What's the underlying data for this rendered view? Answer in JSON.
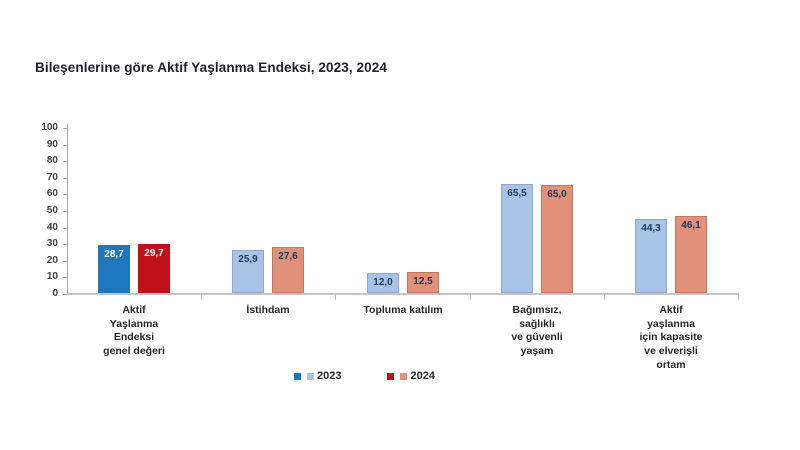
{
  "title": "Bileşenlerine göre Aktif Yaşlanma Endeksi, 2023, 2024",
  "colors": {
    "background": "#ffffff",
    "title_text": "#1f1f2e",
    "axis_text": "#404040",
    "axis_line": "#a6a6a6",
    "baseline": "#c4c4c4",
    "category_text": "#262626",
    "dark_blue_2023": "#1f78be",
    "dark_red_2024": "#c0111a",
    "light_blue_2023": "#a9c3e6",
    "salmon_2024": "#e19079",
    "value_label_on_dark": "#ffffff",
    "value_label_on_light": "#1f3864"
  },
  "chart_data": {
    "type": "bar",
    "title": "Bileşenlerine göre Aktif Yaşlanma Endeksi, 2023, 2024",
    "xlabel": "",
    "ylabel": "",
    "ylim": [
      0,
      100
    ],
    "yticks": [
      0,
      10,
      20,
      30,
      40,
      50,
      60,
      70,
      80,
      90,
      100
    ],
    "grid": false,
    "legend_position": "bottom-center",
    "categories": [
      "Aktif\nYaşlanma\nEndeksi\ngenel değeri",
      "İstihdam",
      "Topluma katılım",
      "Bağımsız,\nsağlıklı\nve güvenli\nyaşam",
      "Aktif\nyaşlanma\niçin kapasite\nve elverişli\nortam"
    ],
    "series": [
      {
        "name": "2023",
        "values": [
          28.7,
          25.9,
          12.0,
          65.5,
          44.3
        ],
        "labels": [
          "28,7",
          "25,9",
          "12,0",
          "65,5",
          "44,3"
        ],
        "bar_colors": [
          "#1f78be",
          "#a9c3e6",
          "#a9c3e6",
          "#a9c3e6",
          "#a9c3e6"
        ],
        "bar_borders": [
          "#1f78be",
          "#8ca9d4",
          "#8ca9d4",
          "#8ca9d4",
          "#8ca9d4"
        ],
        "label_colors": [
          "#ffffff",
          "#1f3864",
          "#1f3864",
          "#1f3864",
          "#1f3864"
        ]
      },
      {
        "name": "2024",
        "values": [
          29.7,
          27.6,
          12.5,
          65.0,
          46.1
        ],
        "labels": [
          "29,7",
          "27,6",
          "12,5",
          "65,0",
          "46,1"
        ],
        "bar_colors": [
          "#c0111a",
          "#e19079",
          "#e19079",
          "#e19079",
          "#e19079"
        ],
        "bar_borders": [
          "#c0111a",
          "#c2765c",
          "#c2765c",
          "#c2765c",
          "#c2765c"
        ],
        "label_colors": [
          "#ffffff",
          "#1f3864",
          "#1f3864",
          "#1f3864",
          "#1f3864"
        ]
      }
    ],
    "legend": [
      {
        "label": "2023",
        "swatches": [
          "#1f78be",
          "#a9c3e6"
        ]
      },
      {
        "label": "2024",
        "swatches": [
          "#c0111a",
          "#e19079"
        ]
      }
    ]
  }
}
